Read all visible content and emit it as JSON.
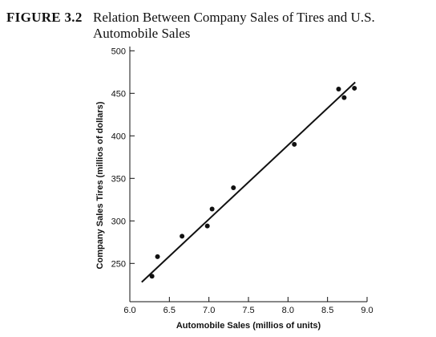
{
  "figure": {
    "label": "FIGURE 3.2",
    "title": "Relation Between Company Sales of Tires and U.S. Automobile Sales"
  },
  "chart_data": {
    "type": "scatter",
    "xlabel": "Automobile Sales (millios of units)",
    "ylabel": "Company Sales Tires (millios of dollars)",
    "xlim": [
      6.0,
      9.0
    ],
    "ylim": [
      205,
      505
    ],
    "x_ticks": [
      "6.0",
      "6.5",
      "7.0",
      "7.5",
      "8.0",
      "8.5",
      "9.0"
    ],
    "y_ticks": [
      "250",
      "300",
      "350",
      "400",
      "450",
      "500"
    ],
    "grid": false,
    "points": [
      {
        "x": 6.28,
        "y": 235
      },
      {
        "x": 6.35,
        "y": 258
      },
      {
        "x": 6.66,
        "y": 282
      },
      {
        "x": 6.98,
        "y": 294
      },
      {
        "x": 7.04,
        "y": 314
      },
      {
        "x": 7.31,
        "y": 339
      },
      {
        "x": 8.08,
        "y": 390
      },
      {
        "x": 8.64,
        "y": 455
      },
      {
        "x": 8.71,
        "y": 445
      },
      {
        "x": 8.84,
        "y": 456
      }
    ],
    "fit_line": {
      "x": [
        6.15,
        8.85
      ],
      "y": [
        228,
        463
      ]
    },
    "colors": {
      "marks": "#111111",
      "axis": "#111111"
    }
  }
}
